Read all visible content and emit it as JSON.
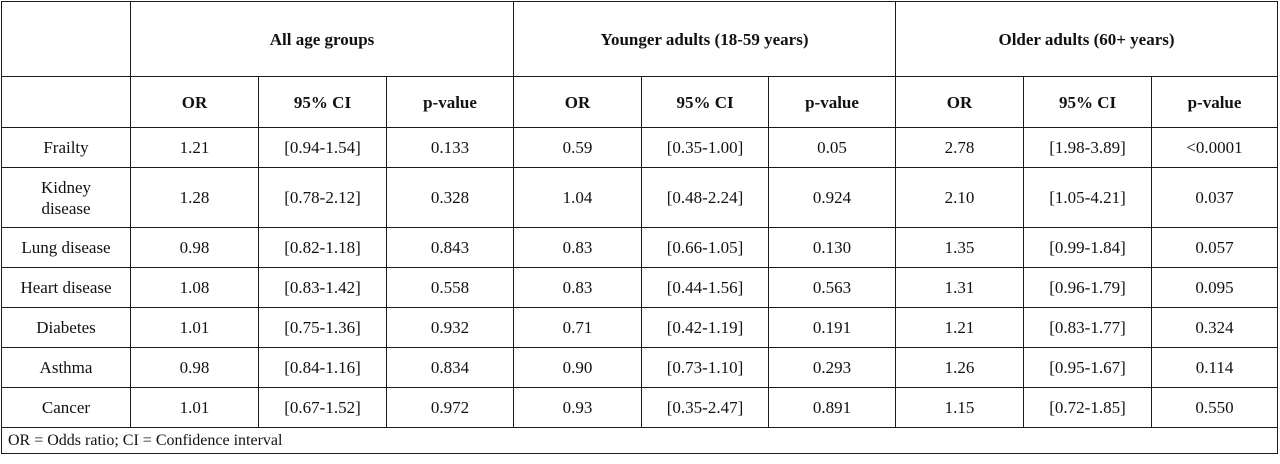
{
  "table": {
    "groups": [
      {
        "label": "All age groups"
      },
      {
        "label": "Younger adults (18-59 years)"
      },
      {
        "label": "Older  adults (60+ years)"
      }
    ],
    "subheaders": [
      "OR",
      "95% CI",
      "p-value"
    ],
    "rows": [
      {
        "condition": "Frailty",
        "cells": [
          "1.21",
          "[0.94-1.54]",
          "0.133",
          "0.59",
          "[0.35-1.00]",
          "0.05",
          "2.78",
          "[1.98-3.89]",
          "<0.0001"
        ]
      },
      {
        "condition": "Kidney disease",
        "cells": [
          "1.28",
          "[0.78-2.12]",
          "0.328",
          "1.04",
          "[0.48-2.24]",
          "0.924",
          "2.10",
          "[1.05-4.21]",
          "0.037"
        ]
      },
      {
        "condition": "Lung disease",
        "cells": [
          "0.98",
          "[0.82-1.18]",
          "0.843",
          "0.83",
          "[0.66-1.05]",
          "0.130",
          "1.35",
          "[0.99-1.84]",
          "0.057"
        ]
      },
      {
        "condition": "Heart disease",
        "cells": [
          "1.08",
          "[0.83-1.42]",
          "0.558",
          "0.83",
          "[0.44-1.56]",
          "0.563",
          "1.31",
          "[0.96-1.79]",
          "0.095"
        ]
      },
      {
        "condition": "Diabetes",
        "cells": [
          "1.01",
          "[0.75-1.36]",
          "0.932",
          "0.71",
          "[0.42-1.19]",
          "0.191",
          "1.21",
          "[0.83-1.77]",
          "0.324"
        ]
      },
      {
        "condition": "Asthma",
        "cells": [
          "0.98",
          "[0.84-1.16]",
          "0.834",
          "0.90",
          "[0.73-1.10]",
          "0.293",
          "1.26",
          "[0.95-1.67]",
          "0.114"
        ]
      },
      {
        "condition": "Cancer",
        "cells": [
          "1.01",
          "[0.67-1.52]",
          "0.972",
          "0.93",
          "[0.35-2.47]",
          "0.891",
          "1.15",
          "[0.72-1.85]",
          "0.550"
        ]
      }
    ],
    "footnote": "OR = Odds ratio; CI = Confidence interval"
  }
}
